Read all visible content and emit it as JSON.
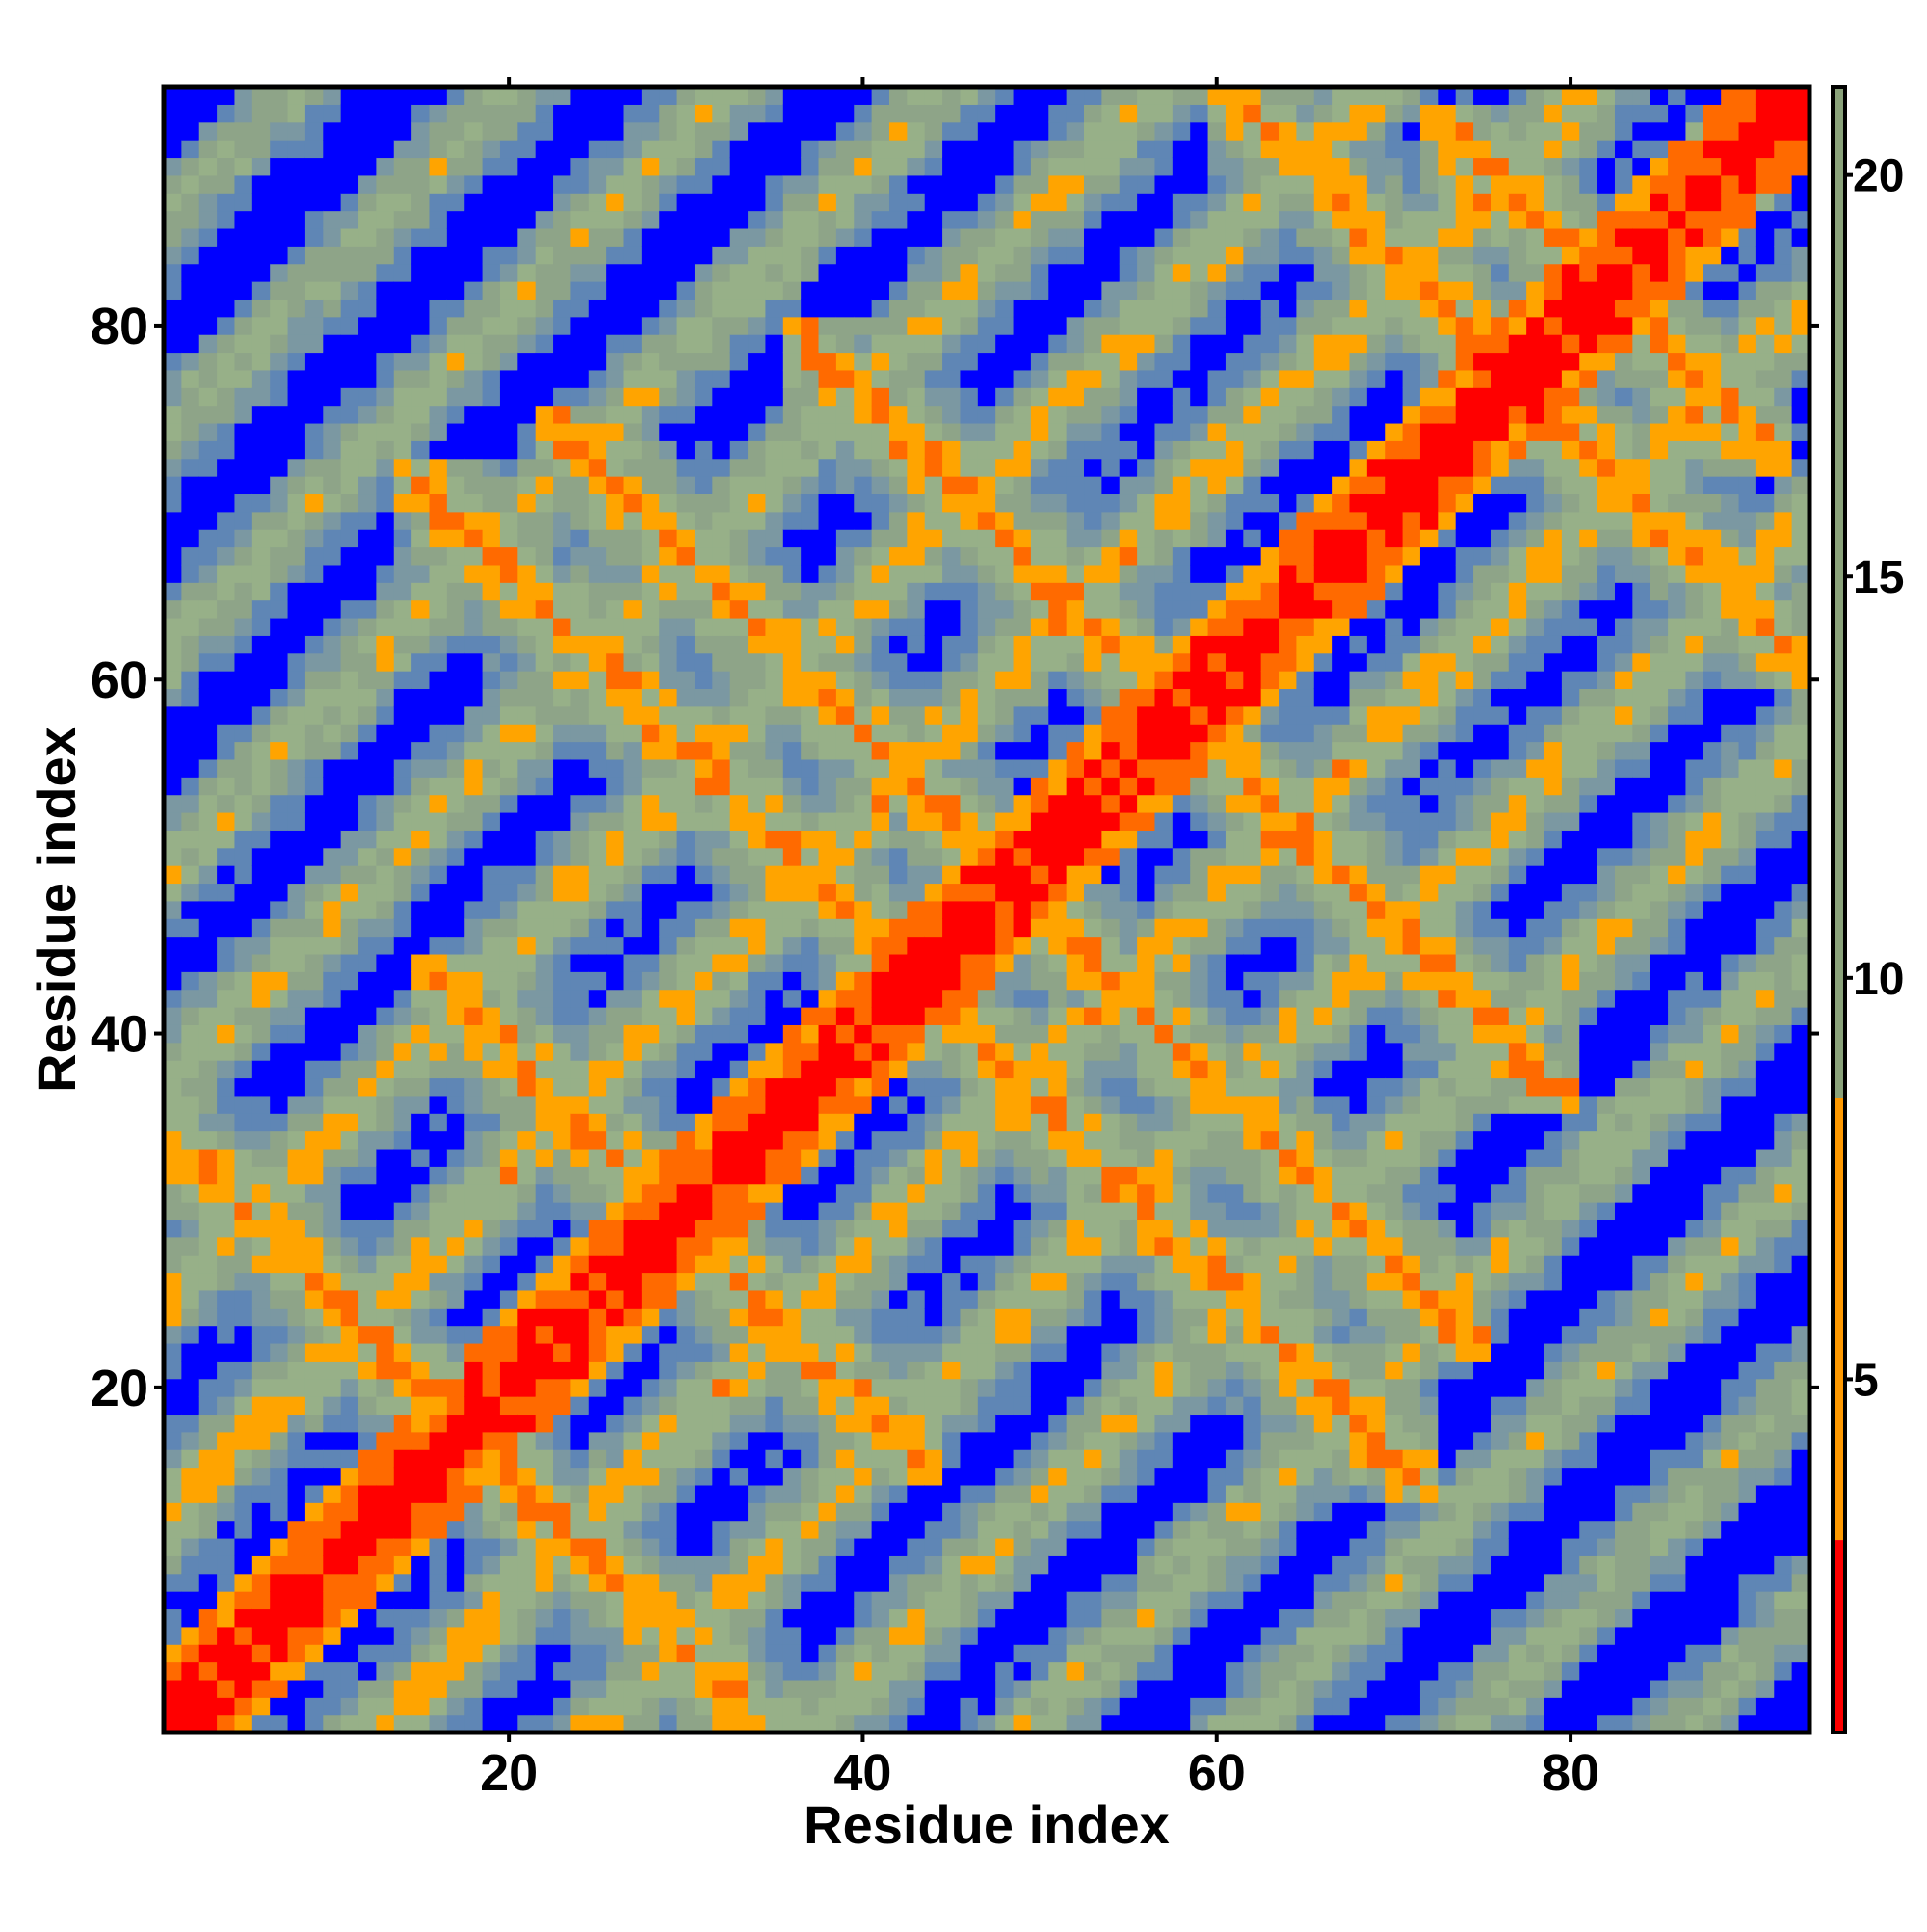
{
  "chart_data": {
    "type": "heatmap",
    "title": "",
    "xlabel": "Residue index",
    "ylabel": "Residue index",
    "n_residues": 93,
    "xlim": [
      0.5,
      93.5
    ],
    "ylim": [
      0.5,
      93.5
    ],
    "x_ticks": [
      20,
      40,
      60,
      80
    ],
    "y_ticks": [
      20,
      40,
      60,
      80
    ],
    "x_tick_labels": [
      "20",
      "40",
      "60",
      "80"
    ],
    "y_tick_labels": [
      "20",
      "40",
      "60",
      "80"
    ],
    "value_unit": "distance",
    "colorbar": {
      "range": [
        0.6,
        21.1
      ],
      "ticks": [
        5,
        10,
        15,
        20
      ],
      "tick_labels": [
        "5",
        "10",
        "15",
        "20"
      ],
      "segments": [
        {
          "from": 0.6,
          "to": 3.0,
          "color": "#ff0000"
        },
        {
          "from": 3.0,
          "to": 8.5,
          "color": "#ff9900"
        },
        {
          "from": 8.5,
          "to": 21.1,
          "color": "#8aa27a"
        }
      ]
    },
    "color_scale": [
      {
        "max": 3.0,
        "color": "#ff0000"
      },
      {
        "max": 6.0,
        "color": "#ff6a00"
      },
      {
        "max": 8.5,
        "color": "#ffa400"
      },
      {
        "max": 11.0,
        "color": "#97b088"
      },
      {
        "max": 13.5,
        "color": "#8ea488"
      },
      {
        "max": 16.0,
        "color": "#7b98a2"
      },
      {
        "max": 19.5,
        "color": "#5f86b5"
      },
      {
        "max": 99,
        "color": "#0000ff"
      }
    ],
    "contact_structure": {
      "description_kind": "symmetric residue distance matrix of a helical repeat protein",
      "main_diagonal": "distance ~0 (red band along i=j)",
      "antiparallel_bands": [
        {
          "sum": 35,
          "i_range": [
            1,
            34
          ],
          "level": "orange"
        },
        {
          "sum": 59,
          "i_range": [
            17,
            42
          ],
          "level": "orange"
        },
        {
          "sum": 86,
          "i_range": [
            40,
            70
          ],
          "level": "orange"
        },
        {
          "sum": 116,
          "i_range": [
            38,
            78
          ],
          "level": "orange"
        },
        {
          "sum": 154,
          "i_range": [
            63,
            92
          ],
          "level": "orange"
        },
        {
          "sum": 97,
          "i_range": [
            24,
            73
          ],
          "level": "orange"
        },
        {
          "sum": 164,
          "i_range": [
            74,
            90
          ],
          "level": "orange"
        }
      ]
    }
  }
}
